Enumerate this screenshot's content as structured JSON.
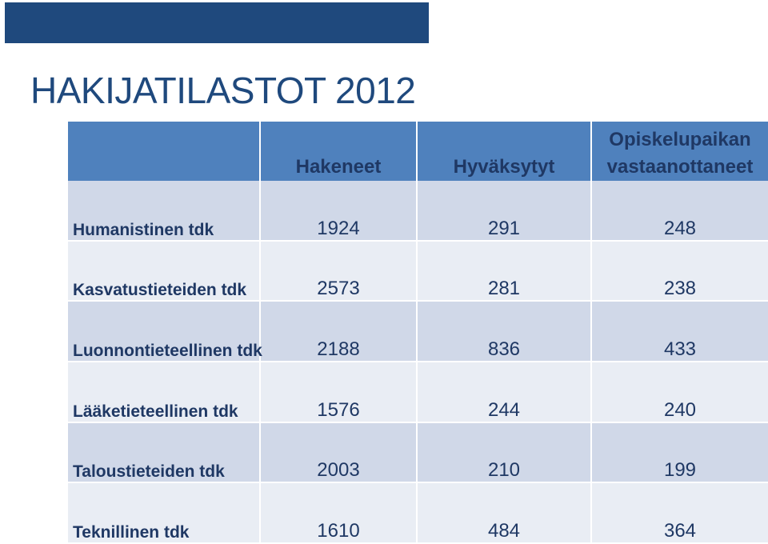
{
  "slide": {
    "title": "HAKIJATILASTOT 2012"
  },
  "table": {
    "headers": [
      "",
      "Hakeneet",
      "Hyväksytyt",
      "Opiskelupaikan vastaanottaneet"
    ],
    "header_lines": {
      "col3_line1": "Opiskelupaikan",
      "col3_line2": "vastaanottaneet"
    },
    "rows": [
      {
        "faculty": "Humanistinen tdk",
        "hakeneet": "1924",
        "hyvaksytyt": "291",
        "vastaanottaneet": "248"
      },
      {
        "faculty": "Kasvatustieteiden tdk",
        "hakeneet": "2573",
        "hyvaksytyt": "281",
        "vastaanottaneet": "238"
      },
      {
        "faculty": "Luonnontieteellinen tdk",
        "hakeneet": "2188",
        "hyvaksytyt": "836",
        "vastaanottaneet": "433"
      },
      {
        "faculty": "Lääketieteellinen tdk",
        "hakeneet": "1576",
        "hyvaksytyt": "244",
        "vastaanottaneet": "240"
      },
      {
        "faculty": "Taloustieteiden tdk",
        "hakeneet": "2003",
        "hyvaksytyt": "210",
        "vastaanottaneet": "199"
      },
      {
        "faculty": "Teknillinen tdk",
        "hakeneet": "1610",
        "hyvaksytyt": "484",
        "vastaanottaneet": "364"
      }
    ]
  },
  "colors": {
    "title": "#1f497d",
    "top_bar": "#1f497d",
    "header_fill": "#4f81bd",
    "header_text": "#1f3864",
    "row_odd": "#d0d8e8",
    "row_even": "#e9edf4"
  }
}
